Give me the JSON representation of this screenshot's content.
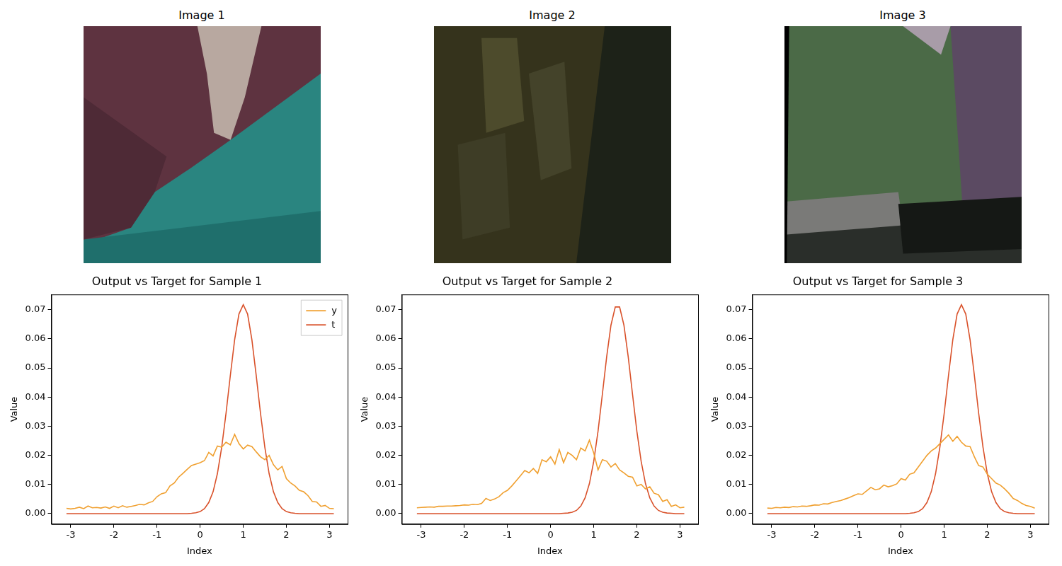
{
  "images": [
    {
      "title": "Image 1"
    },
    {
      "title": "Image 2"
    },
    {
      "title": "Image 3"
    }
  ],
  "chart_data": [
    {
      "type": "line",
      "title": "Output vs Target for Sample 1",
      "x_label": "Index",
      "y_label": "Value",
      "x": [
        -3.1,
        -3.0,
        -2.9,
        -2.8,
        -2.7,
        -2.6,
        -2.5,
        -2.4,
        -2.3,
        -2.2,
        -2.1,
        -2.0,
        -1.9,
        -1.8,
        -1.7,
        -1.6,
        -1.5,
        -1.4,
        -1.3,
        -1.2,
        -1.1,
        -1.0,
        -0.9,
        -0.8,
        -0.7,
        -0.6,
        -0.5,
        -0.4,
        -0.3,
        -0.2,
        -0.1,
        0.0,
        0.1,
        0.2,
        0.3,
        0.4,
        0.5,
        0.6,
        0.7,
        0.8,
        0.9,
        1.0,
        1.1,
        1.2,
        1.3,
        1.4,
        1.5,
        1.6,
        1.7,
        1.8,
        1.9,
        2.0,
        2.1,
        2.2,
        2.3,
        2.4,
        2.5,
        2.6,
        2.7,
        2.8,
        2.9,
        3.0,
        3.1
      ],
      "series": [
        {
          "name": "y",
          "color": "#f0a030",
          "values": [
            0.0018,
            0.0016,
            0.0018,
            0.0022,
            0.0017,
            0.0026,
            0.002,
            0.0021,
            0.0019,
            0.0023,
            0.0018,
            0.0026,
            0.002,
            0.0027,
            0.0022,
            0.0025,
            0.0028,
            0.0032,
            0.003,
            0.0037,
            0.0042,
            0.0058,
            0.0068,
            0.0072,
            0.0095,
            0.0105,
            0.0125,
            0.0138,
            0.0152,
            0.0165,
            0.017,
            0.0175,
            0.0182,
            0.021,
            0.0198,
            0.0232,
            0.0228,
            0.0245,
            0.0236,
            0.0272,
            0.024,
            0.0222,
            0.0235,
            0.023,
            0.0212,
            0.0195,
            0.0185,
            0.02,
            0.0168,
            0.015,
            0.0162,
            0.012,
            0.0105,
            0.0095,
            0.008,
            0.0075,
            0.0062,
            0.0042,
            0.004,
            0.0025,
            0.0028,
            0.0018,
            0.0017
          ]
        },
        {
          "name": "t",
          "color": "#d9522b",
          "values": [
            0,
            0,
            0,
            0,
            0,
            0,
            0,
            0,
            0,
            0,
            0,
            0,
            0,
            0,
            0,
            0,
            0,
            0,
            0,
            0,
            0,
            0,
            0,
            0,
            0,
            0,
            0,
            0,
            0,
            0.0001,
            0.0003,
            0.0007,
            0.0017,
            0.0038,
            0.0075,
            0.0137,
            0.0228,
            0.0344,
            0.0474,
            0.0597,
            0.0685,
            0.0717,
            0.0685,
            0.0597,
            0.0474,
            0.0344,
            0.0228,
            0.0137,
            0.0075,
            0.0038,
            0.0017,
            0.0007,
            0.0003,
            0.0001,
            0,
            0,
            0,
            0,
            0,
            0,
            0,
            0,
            0
          ]
        }
      ],
      "xlim": [
        -3.45,
        3.42
      ],
      "xticks": [
        -3,
        -2,
        -1,
        0,
        1,
        2,
        3
      ],
      "ylim": [
        -0.0036,
        0.0752
      ],
      "yticks": [
        {
          "value": 0,
          "label": "0.00"
        },
        {
          "value": 0.01,
          "label": "0.01"
        },
        {
          "value": 0.02,
          "label": "0.02"
        },
        {
          "value": 0.03,
          "label": "0.03"
        },
        {
          "value": 0.04,
          "label": "0.04"
        },
        {
          "value": 0.05,
          "label": "0.05"
        },
        {
          "value": 0.06,
          "label": "0.06"
        },
        {
          "value": 0.07,
          "label": "0.07"
        }
      ],
      "grid": false,
      "legend": "upper right"
    },
    {
      "type": "line",
      "title": "Output vs Target for Sample 2",
      "x_label": "Index",
      "y_label": "Value",
      "x": [
        -3.1,
        -3.0,
        -2.9,
        -2.8,
        -2.7,
        -2.6,
        -2.5,
        -2.4,
        -2.3,
        -2.2,
        -2.1,
        -2.0,
        -1.9,
        -1.8,
        -1.7,
        -1.6,
        -1.5,
        -1.4,
        -1.3,
        -1.2,
        -1.1,
        -1.0,
        -0.9,
        -0.8,
        -0.7,
        -0.6,
        -0.5,
        -0.4,
        -0.3,
        -0.2,
        -0.1,
        0.0,
        0.1,
        0.2,
        0.3,
        0.4,
        0.5,
        0.6,
        0.7,
        0.8,
        0.9,
        1.0,
        1.1,
        1.2,
        1.3,
        1.4,
        1.5,
        1.6,
        1.7,
        1.8,
        1.9,
        2.0,
        2.1,
        2.2,
        2.3,
        2.4,
        2.5,
        2.6,
        2.7,
        2.8,
        2.9,
        3.0,
        3.1
      ],
      "series": [
        {
          "name": "y",
          "color": "#f0a030",
          "values": [
            0.002,
            0.0021,
            0.0022,
            0.0023,
            0.0022,
            0.0025,
            0.0025,
            0.0026,
            0.0026,
            0.0027,
            0.0028,
            0.003,
            0.0029,
            0.0032,
            0.0031,
            0.0035,
            0.0052,
            0.0045,
            0.005,
            0.0058,
            0.0072,
            0.008,
            0.0095,
            0.0112,
            0.013,
            0.0148,
            0.014,
            0.0155,
            0.0138,
            0.0185,
            0.0178,
            0.0195,
            0.017,
            0.022,
            0.0175,
            0.021,
            0.02,
            0.0185,
            0.0225,
            0.0215,
            0.0252,
            0.0208,
            0.015,
            0.0185,
            0.018,
            0.016,
            0.0172,
            0.015,
            0.014,
            0.0128,
            0.0125,
            0.0095,
            0.01,
            0.0085,
            0.0092,
            0.007,
            0.0065,
            0.0042,
            0.0048,
            0.0025,
            0.003,
            0.002,
            0.0022
          ]
        },
        {
          "name": "t",
          "color": "#d9522b",
          "values": [
            0,
            0,
            0,
            0,
            0,
            0,
            0,
            0,
            0,
            0,
            0,
            0,
            0,
            0,
            0,
            0,
            0,
            0,
            0,
            0,
            0,
            0,
            0,
            0,
            0,
            0,
            0,
            0,
            0,
            0,
            0,
            0,
            0,
            0,
            0.0001,
            0.0002,
            0.0005,
            0.0011,
            0.0026,
            0.0054,
            0.0103,
            0.0179,
            0.0283,
            0.0409,
            0.0538,
            0.0647,
            0.0709,
            0.0709,
            0.0647,
            0.0538,
            0.0409,
            0.0283,
            0.0179,
            0.0103,
            0.0054,
            0.0026,
            0.0011,
            0.0005,
            0.0002,
            0.0001,
            0,
            0,
            0
          ]
        }
      ],
      "xlim": [
        -3.45,
        3.42
      ],
      "xticks": [
        -3,
        -2,
        -1,
        0,
        1,
        2,
        3
      ],
      "ylim": [
        -0.0036,
        0.0752
      ],
      "yticks": [
        {
          "value": 0,
          "label": "0.00"
        },
        {
          "value": 0.01,
          "label": "0.01"
        },
        {
          "value": 0.02,
          "label": "0.02"
        },
        {
          "value": 0.03,
          "label": "0.03"
        },
        {
          "value": 0.04,
          "label": "0.04"
        },
        {
          "value": 0.05,
          "label": "0.05"
        },
        {
          "value": 0.06,
          "label": "0.06"
        },
        {
          "value": 0.07,
          "label": "0.07"
        }
      ],
      "grid": false
    },
    {
      "type": "line",
      "title": "Output vs Target for Sample 3",
      "x_label": "Index",
      "y_label": "Value",
      "x": [
        -3.1,
        -3.0,
        -2.9,
        -2.8,
        -2.7,
        -2.6,
        -2.5,
        -2.4,
        -2.3,
        -2.2,
        -2.1,
        -2.0,
        -1.9,
        -1.8,
        -1.7,
        -1.6,
        -1.5,
        -1.4,
        -1.3,
        -1.2,
        -1.1,
        -1.0,
        -0.9,
        -0.8,
        -0.7,
        -0.6,
        -0.5,
        -0.4,
        -0.3,
        -0.2,
        -0.1,
        0.0,
        0.1,
        0.2,
        0.3,
        0.4,
        0.5,
        0.6,
        0.7,
        0.8,
        0.9,
        1.0,
        1.1,
        1.2,
        1.3,
        1.4,
        1.5,
        1.6,
        1.7,
        1.8,
        1.9,
        2.0,
        2.1,
        2.2,
        2.3,
        2.4,
        2.5,
        2.6,
        2.7,
        2.8,
        2.9,
        3.0,
        3.1
      ],
      "series": [
        {
          "name": "y",
          "color": "#f0a030",
          "values": [
            0.0019,
            0.0018,
            0.0021,
            0.002,
            0.0022,
            0.0021,
            0.0024,
            0.0023,
            0.0026,
            0.0025,
            0.0027,
            0.003,
            0.0029,
            0.0034,
            0.0033,
            0.0038,
            0.0042,
            0.0045,
            0.005,
            0.0055,
            0.0062,
            0.0068,
            0.0066,
            0.0078,
            0.009,
            0.0082,
            0.0085,
            0.0098,
            0.0092,
            0.0096,
            0.0102,
            0.012,
            0.0115,
            0.0135,
            0.014,
            0.016,
            0.018,
            0.02,
            0.0215,
            0.0225,
            0.024,
            0.0255,
            0.027,
            0.0248,
            0.0265,
            0.0245,
            0.0232,
            0.023,
            0.0195,
            0.0165,
            0.016,
            0.0135,
            0.012,
            0.0105,
            0.0098,
            0.0085,
            0.007,
            0.0052,
            0.0045,
            0.0035,
            0.0028,
            0.0025,
            0.0019
          ]
        },
        {
          "name": "t",
          "color": "#d9522b",
          "values": [
            0,
            0,
            0,
            0,
            0,
            0,
            0,
            0,
            0,
            0,
            0,
            0,
            0,
            0,
            0,
            0,
            0,
            0,
            0,
            0,
            0,
            0,
            0,
            0,
            0,
            0,
            0,
            0,
            0,
            0,
            0,
            0,
            0,
            0.0001,
            0.0003,
            0.0007,
            0.0017,
            0.0038,
            0.0075,
            0.0137,
            0.0228,
            0.0344,
            0.0474,
            0.0597,
            0.0685,
            0.0717,
            0.0685,
            0.0597,
            0.0474,
            0.0344,
            0.0228,
            0.0137,
            0.0075,
            0.0038,
            0.0017,
            0.0007,
            0.0003,
            0.0001,
            0,
            0,
            0,
            0,
            0
          ]
        }
      ],
      "xlim": [
        -3.45,
        3.42
      ],
      "xticks": [
        -3,
        -2,
        -1,
        0,
        1,
        2,
        3
      ],
      "ylim": [
        -0.0036,
        0.0752
      ],
      "yticks": [
        {
          "value": 0,
          "label": "0.00"
        },
        {
          "value": 0.01,
          "label": "0.01"
        },
        {
          "value": 0.02,
          "label": "0.02"
        },
        {
          "value": 0.03,
          "label": "0.03"
        },
        {
          "value": 0.04,
          "label": "0.04"
        },
        {
          "value": 0.05,
          "label": "0.05"
        },
        {
          "value": 0.06,
          "label": "0.06"
        },
        {
          "value": 0.07,
          "label": "0.07"
        }
      ],
      "grid": false
    }
  ]
}
